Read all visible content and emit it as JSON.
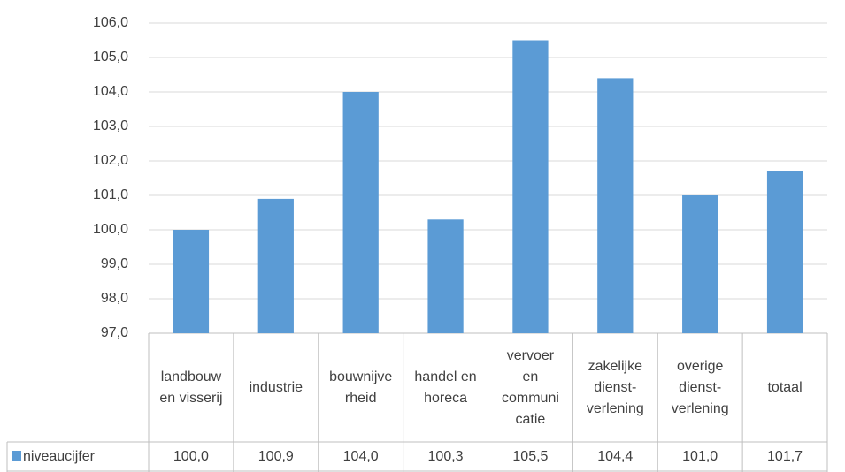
{
  "chart_data": {
    "type": "bar",
    "categories": [
      "landbouw en visserij",
      "industrie",
      "bouwnijverheid",
      "handel en horeca",
      "vervoer en communicatie",
      "zakelijke dienst-verlening",
      "overige dienst-verlening",
      "totaal"
    ],
    "series": [
      {
        "name": "niveaucijfer",
        "color": "#5b9bd5",
        "values": [
          100.0,
          100.9,
          104.0,
          100.3,
          105.5,
          104.4,
          101.0,
          101.7
        ],
        "value_labels": [
          "100,0",
          "100,9",
          "104,0",
          "100,3",
          "105,5",
          "104,4",
          "101,0",
          "101,7"
        ]
      }
    ],
    "ylim": [
      97,
      106
    ],
    "yticks": [
      {
        "value": 97,
        "label": "97,0"
      },
      {
        "value": 98,
        "label": "98,0"
      },
      {
        "value": 99,
        "label": "99,0"
      },
      {
        "value": 100,
        "label": "100,0"
      },
      {
        "value": 101,
        "label": "101,0"
      },
      {
        "value": 102,
        "label": "102,0"
      },
      {
        "value": 103,
        "label": "103,0"
      },
      {
        "value": 104,
        "label": "104,0"
      },
      {
        "value": 105,
        "label": "105,0"
      },
      {
        "value": 106,
        "label": "106,0"
      }
    ],
    "grid": true
  }
}
